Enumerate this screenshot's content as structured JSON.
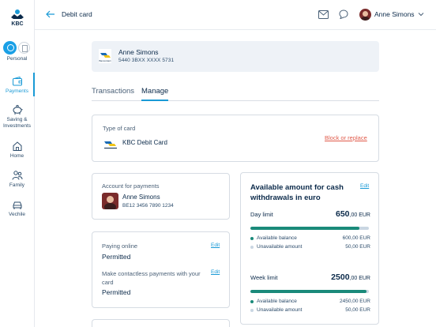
{
  "brand": {
    "logo_text": "KBC",
    "accent": "#1a9ad6",
    "navy": "#0b2a4a",
    "teal": "#1a8a7a"
  },
  "sidebar": {
    "items": [
      {
        "label": "Personal",
        "icon": "person-icon"
      },
      {
        "label": "Payments",
        "icon": "wallet-icon",
        "active": true
      },
      {
        "label": "Saving & Investments",
        "icon": "piggy-bank-icon"
      },
      {
        "label": "Home",
        "icon": "house-icon"
      },
      {
        "label": "Family",
        "icon": "family-icon"
      },
      {
        "label": "Vechile",
        "icon": "car-icon"
      }
    ]
  },
  "topbar": {
    "title": "Debit card",
    "user_name": "Anne Simons"
  },
  "card": {
    "holder": "Anne Simons",
    "number": "5440 3BXX XXXX 5731",
    "brand_label": "Bancontact"
  },
  "tabs": [
    "Transactions",
    "Manage"
  ],
  "type_of_card": {
    "label": "Type of card",
    "value": "KBC Debit Card",
    "action": "Block or replace"
  },
  "account": {
    "label": "Account for payments",
    "name": "Anne Simons",
    "iban": "BE12 3456 7890 1234"
  },
  "payments": {
    "online_label": "Paying online",
    "online_value": "Permitted",
    "contactless_label": "Make contactless payments with your card",
    "contactless_value": "Permitted",
    "edit": "Edit"
  },
  "withdrawals": {
    "title": "Available amount for cash withdrawals in euro",
    "edit": "Edit",
    "day": {
      "label": "Day limit",
      "amount_int": "650",
      "amount_dec": ",00 EUR",
      "available_fraction": 0.92,
      "available_label": "Available balance",
      "available_value": "600,00 EUR",
      "unavailable_label": "Unavailable amount",
      "unavailable_value": "50,00 EUR"
    },
    "week": {
      "label": "Week limit",
      "amount_int": "2500",
      "amount_dec": ",00 EUR",
      "available_fraction": 0.98,
      "available_label": "Available balance",
      "available_value": "2450,00 EUR",
      "unavailable_label": "Unavailable amount",
      "unavailable_value": "50,00 EUR"
    }
  }
}
